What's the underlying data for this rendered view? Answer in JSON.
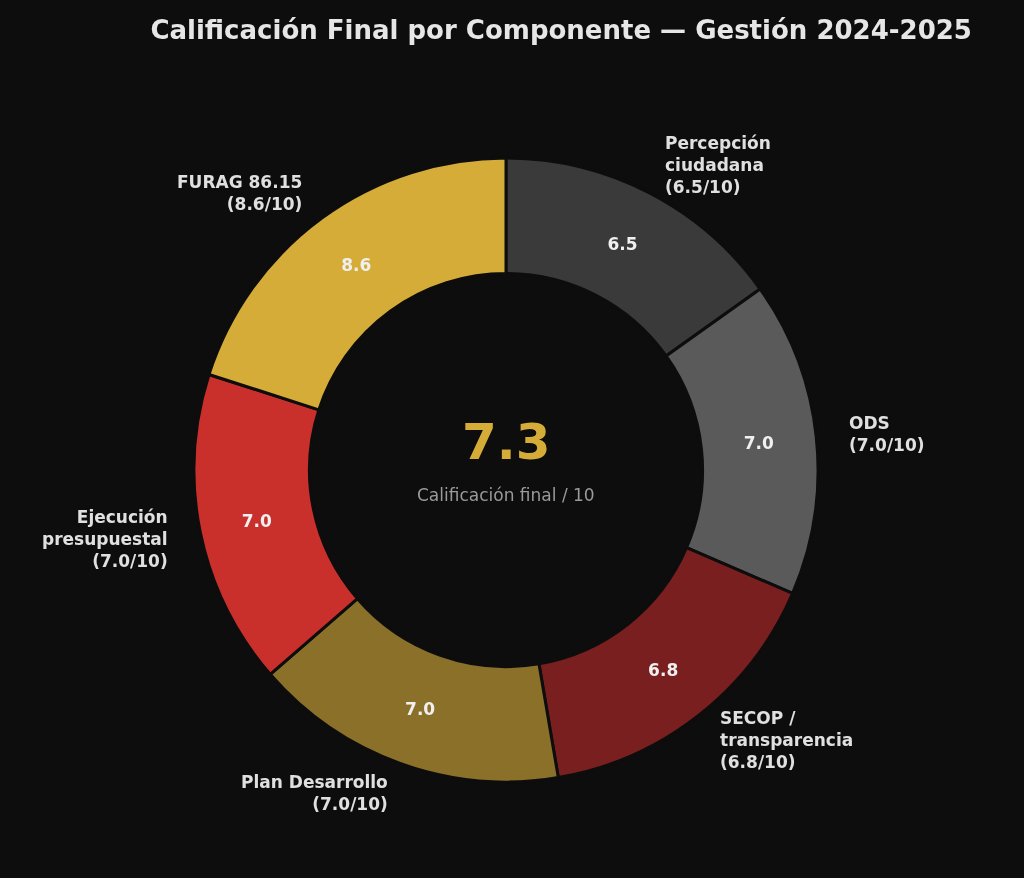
{
  "chart_data": {
    "type": "donut",
    "title": "Calificación Final por Componente — Gestión 2024-2025",
    "categories": [
      "Percepción\nciudadana\n(6.5/10)",
      "ODS\n(7.0/10)",
      "SECOP /\ntransparencia\n(6.8/10)",
      "Plan Desarrollo\n(7.0/10)",
      "Ejecución\npresupuestal\n(7.0/10)",
      "FURAG 86.15\n(8.6/10)"
    ],
    "values": [
      6.5,
      7.0,
      6.8,
      7.0,
      7.0,
      8.6
    ],
    "colors": [
      "#3a3a3a",
      "#5a5a5a",
      "#7a1f1f",
      "#8b7029",
      "#c9302c",
      "#d4ac37"
    ],
    "value_labels": [
      "6.5",
      "7.0",
      "6.8",
      "7.0",
      "7.0",
      "8.6"
    ],
    "legend": false,
    "annotations": [
      "7.3",
      "Calificación final / 10"
    ]
  }
}
